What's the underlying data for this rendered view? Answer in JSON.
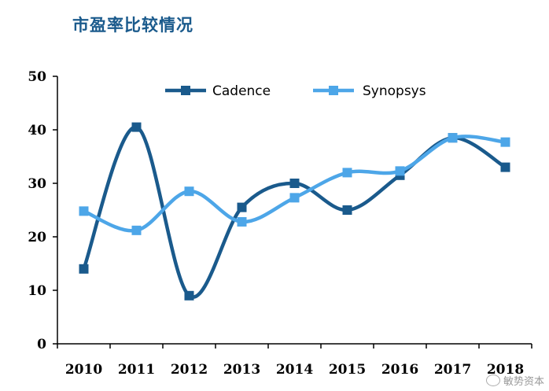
{
  "title": "市盈率比较情况",
  "watermark": "敏势资本",
  "chart_data": {
    "type": "line",
    "title": "市盈率比较情况",
    "categories": [
      "2010",
      "2011",
      "2012",
      "2013",
      "2014",
      "2015",
      "2016",
      "2017",
      "2018"
    ],
    "ylim": [
      0,
      50
    ],
    "yticks": [
      0,
      10,
      20,
      30,
      40,
      50
    ],
    "grid": false,
    "legend_position": "top",
    "smooth": true,
    "series": [
      {
        "name": "Cadence",
        "color": "#1a5a8c",
        "marker": "square",
        "values": [
          14,
          40.5,
          9,
          25.5,
          30,
          25,
          31.5,
          38.5,
          33
        ]
      },
      {
        "name": "Synopsys",
        "color": "#4da6e8",
        "marker": "square",
        "values": [
          24.8,
          21.2,
          28.5,
          22.8,
          27.3,
          32,
          32.3,
          38.5,
          37.7
        ]
      }
    ]
  }
}
